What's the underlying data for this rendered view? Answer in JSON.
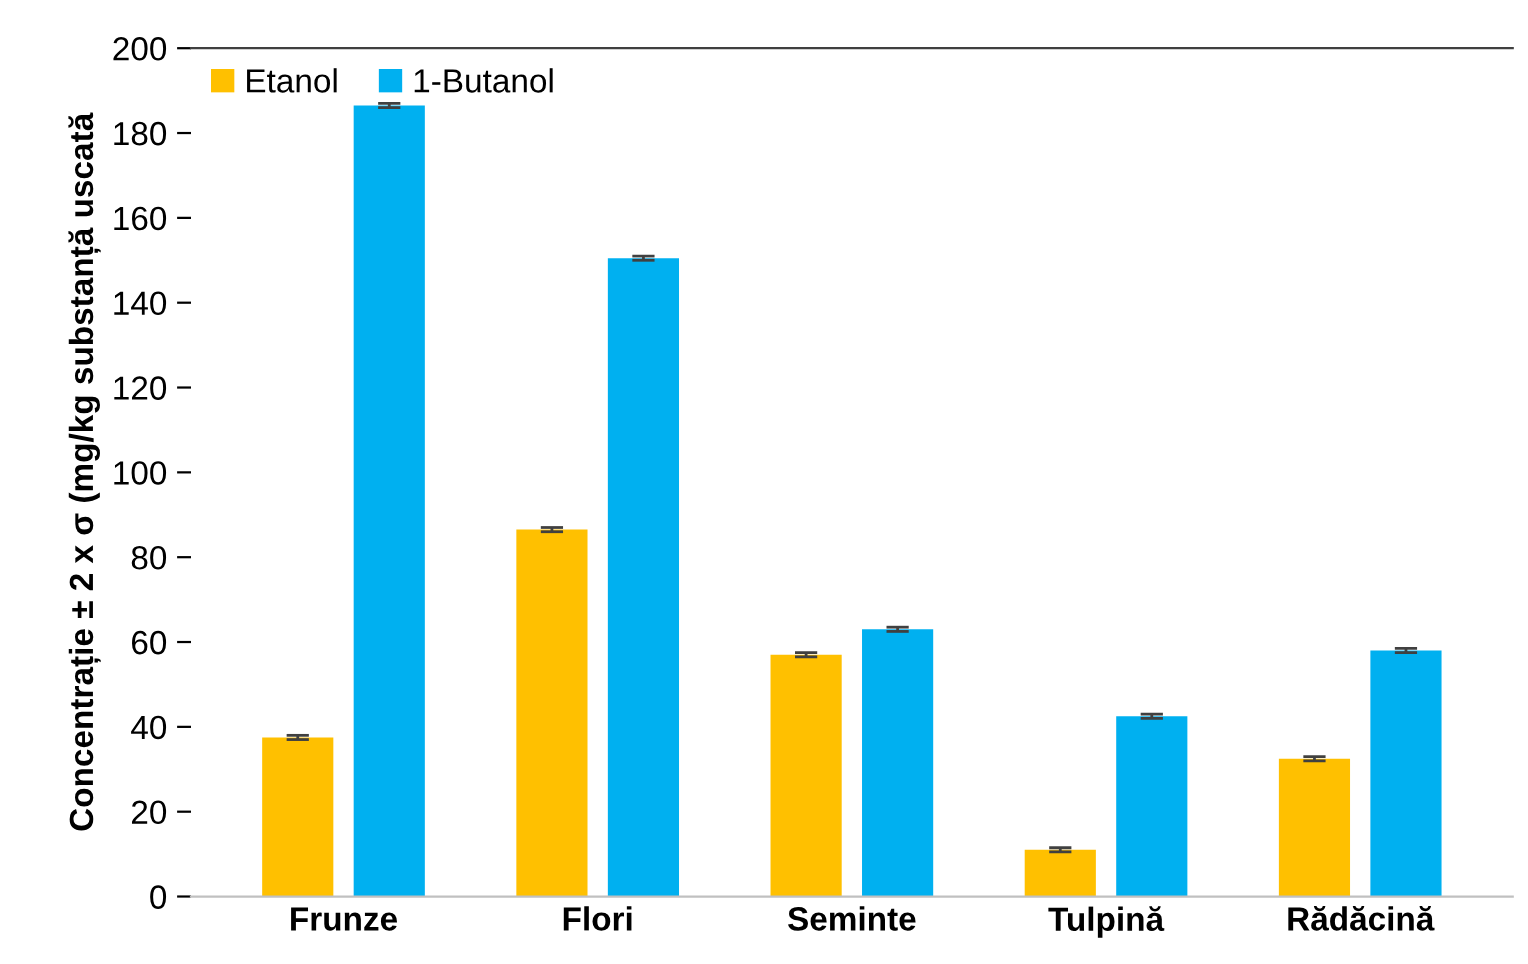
{
  "chart_data": {
    "type": "bar",
    "ylabel": "Concentrație ± 2 x σ (mg/kg substanță uscată",
    "categories": [
      "Frunze",
      "Flori",
      "Seminte",
      "Tulpină",
      "Rădăcină"
    ],
    "series": [
      {
        "name": "Etanol",
        "color": "#ffc000",
        "values": [
          37.5,
          86.5,
          57,
          11,
          32.5
        ],
        "errors": [
          0.5,
          0.5,
          0.5,
          0.5,
          0.5
        ]
      },
      {
        "name": "1-Butanol",
        "color": "#00b0f0",
        "values": [
          186.5,
          150.5,
          63,
          42.5,
          58
        ],
        "errors": [
          0.5,
          0.5,
          0.5,
          0.5,
          0.5
        ]
      }
    ],
    "ylim": [
      0,
      200
    ],
    "yticks": [
      0,
      20,
      40,
      60,
      80,
      100,
      120,
      140,
      160,
      180,
      200
    ],
    "grid": false,
    "legend": "top left"
  }
}
